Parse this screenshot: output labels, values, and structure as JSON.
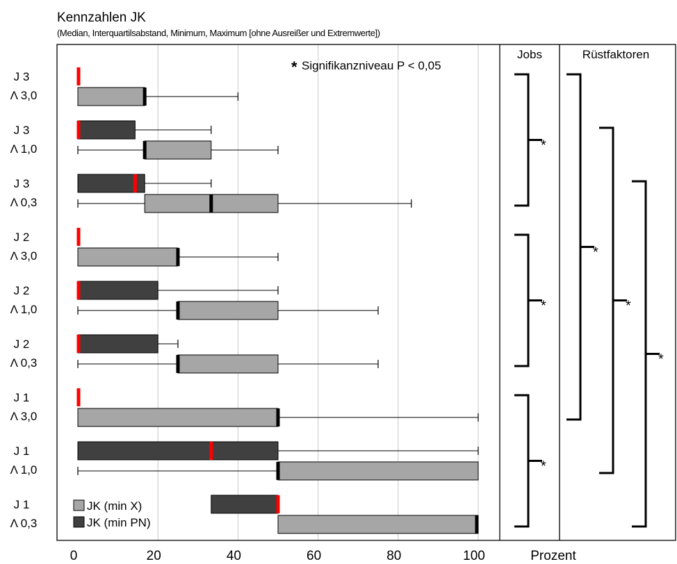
{
  "chart_data": {
    "type": "box",
    "title": "Kennzahlen JK",
    "subtitle": "(Median, Interquartilsabstand, Minimum, Maximum [ohne Ausreißer und Extremwerte])",
    "xlabel": "Prozent",
    "xlim": [
      0,
      100
    ],
    "xticks": [
      0,
      20,
      40,
      60,
      80,
      100
    ],
    "grid": true,
    "annotation_star": "*",
    "annotation_text": "Signifikanzniveau P < 0,05",
    "legend_position": "bottom-left",
    "series": [
      {
        "name": "JK (min X)",
        "color": "#a6a6a6",
        "median_color": "#000000"
      },
      {
        "name": "JK (min PN)",
        "color": "#404040",
        "median_color": "#ff0000"
      }
    ],
    "groups": [
      {
        "job": "J 3",
        "lambda": "Λ 3,0",
        "boxes": [
          {
            "series": 1,
            "min": 0,
            "q1": 0,
            "median": 0,
            "q3": 0,
            "max": 0
          },
          {
            "series": 0,
            "min": 0,
            "q1": 0,
            "median": 16.7,
            "q3": 16.7,
            "max": 40
          }
        ]
      },
      {
        "job": "J 3",
        "lambda": "Λ 1,0",
        "boxes": [
          {
            "series": 1,
            "min": 0,
            "q1": 0,
            "median": 0,
            "q3": 14.3,
            "max": 33.3
          },
          {
            "series": 0,
            "min": 0,
            "q1": 16.7,
            "median": 16.7,
            "q3": 33.3,
            "max": 50
          }
        ]
      },
      {
        "job": "J 3",
        "lambda": "Λ 0,3",
        "boxes": [
          {
            "series": 1,
            "min": 0,
            "q1": 0,
            "median": 14.3,
            "q3": 16.7,
            "max": 33.3
          },
          {
            "series": 0,
            "min": 0,
            "q1": 16.7,
            "median": 33.3,
            "q3": 50,
            "max": 83.3
          }
        ]
      },
      {
        "job": "J 2",
        "lambda": "Λ 3,0",
        "boxes": [
          {
            "series": 1,
            "min": 0,
            "q1": 0,
            "median": 0,
            "q3": 0,
            "max": 0
          },
          {
            "series": 0,
            "min": 0,
            "q1": 0,
            "median": 25,
            "q3": 25,
            "max": 50
          }
        ]
      },
      {
        "job": "J 2",
        "lambda": "Λ 1,0",
        "boxes": [
          {
            "series": 1,
            "min": 0,
            "q1": 0,
            "median": 0,
            "q3": 20,
            "max": 50
          },
          {
            "series": 0,
            "min": 0,
            "q1": 25,
            "median": 25,
            "q3": 50,
            "max": 75
          }
        ]
      },
      {
        "job": "J 2",
        "lambda": "Λ 0,3",
        "boxes": [
          {
            "series": 1,
            "min": 0,
            "q1": 0,
            "median": 0,
            "q3": 20,
            "max": 25
          },
          {
            "series": 0,
            "min": 0,
            "q1": 25,
            "median": 25,
            "q3": 50,
            "max": 75
          }
        ]
      },
      {
        "job": "J 1",
        "lambda": "Λ 3,0",
        "boxes": [
          {
            "series": 1,
            "min": 0,
            "q1": 0,
            "median": 0,
            "q3": 0,
            "max": 0
          },
          {
            "series": 0,
            "min": 0,
            "q1": 0,
            "median": 50,
            "q3": 50,
            "max": 100
          }
        ]
      },
      {
        "job": "J 1",
        "lambda": "Λ 1,0",
        "boxes": [
          {
            "series": 1,
            "min": 0,
            "q1": 0,
            "median": 33.3,
            "q3": 50,
            "max": 100
          },
          {
            "series": 0,
            "min": 0,
            "q1": 50,
            "median": 50,
            "q3": 100,
            "max": 100
          }
        ]
      },
      {
        "job": "J 1",
        "lambda": "Λ 0,3",
        "boxes": [
          {
            "series": 1,
            "min": 33.3,
            "q1": 33.3,
            "median": 50,
            "q3": 50,
            "max": 50
          },
          {
            "series": 0,
            "min": 50,
            "q1": 50,
            "median": 100,
            "q3": 100,
            "max": 100
          }
        ]
      }
    ],
    "comparisons": {
      "jobs_header": "Jobs",
      "ruest_header": "Rüstfaktoren",
      "jobs": [
        {
          "group_start": 0,
          "group_end": 2,
          "label": "*"
        },
        {
          "group_start": 3,
          "group_end": 5,
          "label": "*"
        },
        {
          "group_start": 6,
          "group_end": 8,
          "label": "*"
        }
      ],
      "ruest": [
        {
          "group_start": 0,
          "group_end": 6,
          "label": "*"
        },
        {
          "group_start": 1,
          "group_end": 7,
          "label": "*"
        },
        {
          "group_start": 2,
          "group_end": 8,
          "label": "*"
        }
      ]
    }
  }
}
